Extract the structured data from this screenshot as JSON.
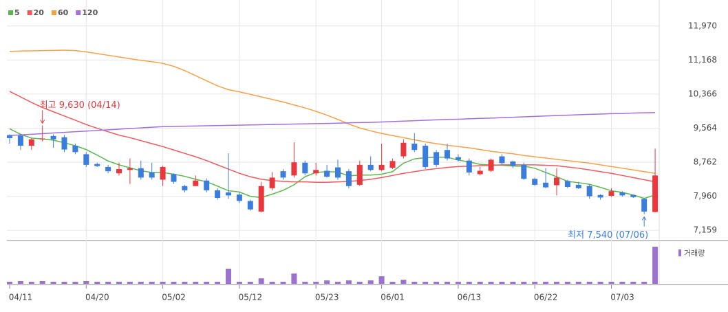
{
  "chart_data": {
    "type": "candlestick",
    "legend": [
      "5",
      "20",
      "60",
      "120"
    ],
    "categories": [
      "04/11",
      null,
      null,
      null,
      null,
      null,
      null,
      "04/20",
      null,
      null,
      null,
      null,
      null,
      null,
      "05/02",
      null,
      null,
      null,
      null,
      null,
      null,
      "05/12",
      null,
      null,
      null,
      null,
      null,
      null,
      "05/23",
      null,
      null,
      null,
      null,
      null,
      "06/01",
      null,
      null,
      null,
      null,
      null,
      null,
      "06/13",
      null,
      null,
      null,
      null,
      null,
      null,
      "06/22",
      null,
      null,
      null,
      null,
      null,
      null,
      "07/03",
      null,
      null,
      null,
      null
    ],
    "open": [
      9400,
      9390,
      9150,
      9300,
      9380,
      9350,
      9150,
      8950,
      8720,
      8650,
      8500,
      8580,
      8620,
      8520,
      8350,
      8480,
      8200,
      8200,
      8330,
      8100,
      8050,
      8000,
      7850,
      7600,
      8150,
      8550,
      8450,
      8750,
      8500,
      8560,
      8640,
      8550,
      8230,
      8700,
      8580,
      8630,
      8900,
      9200,
      9150,
      9000,
      9050,
      8880,
      8800,
      8480,
      8560,
      8900,
      8780,
      8700,
      8370,
      8280,
      8220,
      8320,
      8230,
      8200,
      7990,
      7970,
      8050,
      7990,
      7900,
      7590
    ],
    "high": [
      9420,
      9420,
      9330,
      9630,
      9420,
      9400,
      9200,
      9000,
      8750,
      8700,
      8750,
      8850,
      8800,
      8750,
      8680,
      8500,
      8230,
      8450,
      8380,
      8150,
      8970,
      8050,
      7880,
      8300,
      8530,
      8600,
      9230,
      8800,
      8750,
      8700,
      8820,
      8600,
      8800,
      8900,
      9200,
      8850,
      9300,
      9450,
      9200,
      9050,
      9200,
      8950,
      8850,
      8650,
      8850,
      8950,
      8800,
      8750,
      8400,
      8620,
      8620,
      8350,
      8300,
      8250,
      8010,
      8150,
      8080,
      8000,
      7900,
      9080
    ],
    "low": [
      9200,
      9050,
      9050,
      9250,
      9100,
      9000,
      8950,
      8650,
      8650,
      8500,
      8450,
      8250,
      8350,
      8350,
      8200,
      8250,
      8050,
      8200,
      8050,
      7880,
      7900,
      7800,
      7620,
      7580,
      8100,
      8350,
      8400,
      8450,
      8450,
      8400,
      8350,
      8150,
      8200,
      8550,
      8550,
      8600,
      8850,
      9000,
      8600,
      8650,
      8800,
      8780,
      8450,
      8450,
      8530,
      8700,
      8620,
      8350,
      8200,
      8150,
      7980,
      8150,
      8130,
      7900,
      7880,
      7950,
      7950,
      7920,
      7540,
      7580
    ],
    "close": [
      9330,
      9150,
      9300,
      9320,
      9300,
      9060,
      9000,
      8700,
      8670,
      8550,
      8600,
      8620,
      8400,
      8400,
      8650,
      8300,
      8100,
      8330,
      8100,
      7920,
      7980,
      7850,
      7650,
      8200,
      8400,
      8400,
      8760,
      8500,
      8580,
      8420,
      8400,
      8200,
      8700,
      8580,
      8700,
      8790,
      9220,
      9050,
      8650,
      8700,
      8850,
      8820,
      8520,
      8560,
      8820,
      8740,
      8680,
      8370,
      8230,
      8170,
      8400,
      8180,
      8150,
      7960,
      7930,
      8080,
      7980,
      7940,
      7600,
      8450
    ],
    "up_color": "#e8383d",
    "down_color": "#3b7ddd",
    "series": [
      {
        "name": "5",
        "color": "#5bb84e",
        "values": [
          9550,
          9420,
          9330,
          9310,
          9280,
          9220,
          9150,
          9060,
          8930,
          8790,
          8700,
          8630,
          8560,
          8520,
          8520,
          8480,
          8430,
          8360,
          8300,
          8200,
          8090,
          8060,
          7960,
          7930,
          8010,
          8100,
          8230,
          8420,
          8520,
          8540,
          8530,
          8440,
          8460,
          8460,
          8480,
          8540,
          8740,
          8840,
          8870,
          8880,
          8880,
          8810,
          8770,
          8710,
          8700,
          8690,
          8670,
          8670,
          8620,
          8520,
          8420,
          8310,
          8280,
          8240,
          8170,
          8090,
          8050,
          7990,
          7910,
          7990
        ]
      },
      {
        "name": "20",
        "color": "#f0595b",
        "values": [
          10430,
          10300,
          10170,
          10050,
          9950,
          9850,
          9750,
          9650,
          9560,
          9480,
          9400,
          9340,
          9270,
          9200,
          9130,
          9050,
          8970,
          8890,
          8800,
          8700,
          8600,
          8500,
          8420,
          8360,
          8330,
          8310,
          8300,
          8300,
          8290,
          8290,
          8300,
          8310,
          8330,
          8360,
          8400,
          8450,
          8500,
          8540,
          8580,
          8610,
          8640,
          8660,
          8670,
          8680,
          8690,
          8700,
          8700,
          8700,
          8700,
          8690,
          8680,
          8650,
          8620,
          8580,
          8540,
          8500,
          8450,
          8400,
          8350,
          8300
        ]
      },
      {
        "name": "60",
        "color": "#f7a147",
        "values": [
          11370,
          11380,
          11385,
          11390,
          11395,
          11400,
          11390,
          11360,
          11320,
          11280,
          11240,
          11200,
          11160,
          11130,
          11090,
          11020,
          10920,
          10800,
          10680,
          10560,
          10470,
          10420,
          10360,
          10300,
          10240,
          10180,
          10110,
          10040,
          9960,
          9870,
          9770,
          9660,
          9570,
          9500,
          9440,
          9390,
          9340,
          9290,
          9240,
          9200,
          9160,
          9130,
          9100,
          9060,
          9020,
          8990,
          8960,
          8920,
          8890,
          8860,
          8830,
          8800,
          8770,
          8740,
          8700,
          8660,
          8620,
          8580,
          8540,
          8500
        ]
      },
      {
        "name": "120",
        "color": "#a26fdc",
        "values": [
          9390,
          9405,
          9420,
          9435,
          9450,
          9465,
          9480,
          9495,
          9510,
          9525,
          9540,
          9555,
          9570,
          9585,
          9600,
          9605,
          9610,
          9615,
          9620,
          9625,
          9630,
          9635,
          9640,
          9645,
          9650,
          9655,
          9660,
          9665,
          9670,
          9675,
          9680,
          9690,
          9695,
          9700,
          9710,
          9720,
          9730,
          9740,
          9750,
          9760,
          9770,
          9775,
          9785,
          9795,
          9800,
          9810,
          9820,
          9830,
          9840,
          9850,
          9860,
          9870,
          9880,
          9890,
          9895,
          9905,
          9910,
          9920,
          9925,
          9930
        ]
      }
    ],
    "volume": {
      "name": "거래량",
      "color": "#9c72cf",
      "values": [
        3,
        4,
        3,
        4,
        3,
        3,
        3,
        4,
        3,
        3,
        3,
        3,
        3,
        3,
        3,
        3,
        3,
        3,
        3,
        3,
        22,
        3,
        3,
        8,
        3,
        3,
        15,
        3,
        3,
        5,
        3,
        5,
        3,
        5,
        11,
        3,
        6,
        3,
        3,
        3,
        3,
        3,
        3,
        3,
        3,
        3,
        3,
        3,
        3,
        3,
        3,
        3,
        3,
        3,
        3,
        3,
        3,
        3,
        3,
        54
      ]
    },
    "ylim": [
      6950,
      12420
    ],
    "yticks": [
      {
        "value": 11970,
        "label": "11,970"
      },
      {
        "value": 11168,
        "label": "11,168"
      },
      {
        "value": 10366,
        "label": "10,366"
      },
      {
        "value": 9564,
        "label": "9,564"
      },
      {
        "value": 8762,
        "label": "8,762"
      },
      {
        "value": 7960,
        "label": "7,960"
      },
      {
        "value": 7159,
        "label": "7,159"
      }
    ],
    "grid": true,
    "high_label": "최고 9,630 (04/14)",
    "low_label": "최저 7,540 (07/06)"
  }
}
